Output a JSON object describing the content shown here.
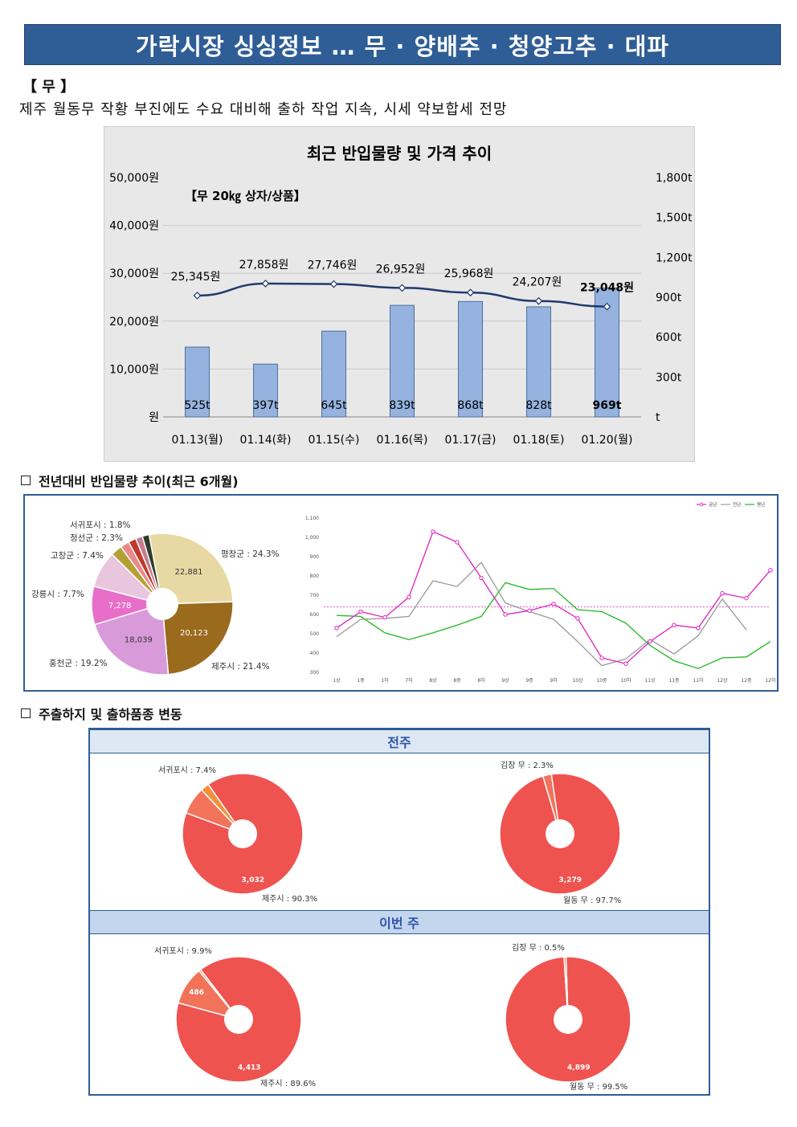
{
  "banner": {
    "title": "가락시장 싱싱정보 …  무 · 양배추 · 청양고추 · 대파"
  },
  "section": {
    "title": "【 무 】",
    "summary": "제주 월동무 작황 부진에도 수요 대비해 출하 작업 지속, 시세 약보합세 전망"
  },
  "chart_data": [
    {
      "type": "bar",
      "title": "최근 반입물량 및 가격 추이",
      "annotation": "【무 20㎏ 상자/상품】",
      "categories": [
        "01.13(월)",
        "01.14(화)",
        "01.15(수)",
        "01.16(목)",
        "01.17(금)",
        "01.18(토)",
        "01.20(월)"
      ],
      "series": [
        {
          "type": "bar",
          "values": [
            525,
            397,
            645,
            839,
            868,
            828,
            969
          ],
          "labels": [
            "525t",
            "397t",
            "645t",
            "839t",
            "868t",
            "828t",
            "969t"
          ],
          "axis": "right",
          "color": "#95b3de"
        },
        {
          "type": "line",
          "values": [
            25345,
            27858,
            27746,
            26952,
            25968,
            24207,
            23048
          ],
          "labels": [
            "25,345원",
            "27,858원",
            "27,746원",
            "26,952원",
            "25,968원",
            "24,207원",
            "23,048원"
          ],
          "axis": "left",
          "color": "#1f3a6e"
        }
      ],
      "y_left": {
        "ticks": [
          "50,000원",
          "40,000원",
          "30,000원",
          "20,000원",
          "10,000원",
          "원"
        ],
        "range": [
          0,
          50000
        ]
      },
      "y_right": {
        "ticks": [
          "1,800t",
          "1,500t",
          "1,200t",
          "900t",
          "600t",
          "300t",
          "t"
        ],
        "range": [
          0,
          1800
        ]
      }
    },
    {
      "type": "pie",
      "slices": [
        {
          "label": "평창군 : 24.3%",
          "value": 22881,
          "value_label": "22,881",
          "color": "#e8d9a4"
        },
        {
          "label": "제주시 : 21.4%",
          "value": 20123,
          "value_label": "20,123",
          "color": "#9a6a1d"
        },
        {
          "label": "홍천군 : 19.2%",
          "value": 18039,
          "value_label": "18,039",
          "color": "#d89ad9"
        },
        {
          "label": "강릉시 : 7.7%",
          "value": 7278,
          "value_label": "7,278",
          "color": "#e86fc9"
        },
        {
          "label": "고창군 : 7.4%",
          "value": 6970,
          "value_label": "",
          "color": "#e9c5de"
        },
        {
          "label": "정선군 : 2.3%",
          "value": 2170,
          "value_label": "",
          "color": "#b5a036"
        },
        {
          "label": "서귀포시 : 1.8%",
          "value": 1700,
          "value_label": "",
          "color": "#e88a8a"
        },
        {
          "label": "",
          "value": 1500,
          "value_label": "",
          "color": "#c0392b"
        },
        {
          "label": "",
          "value": 1300,
          "value_label": "",
          "color": "#c97a8f"
        },
        {
          "label": "",
          "value": 1300,
          "value_label": "",
          "color": "#2e3e2a"
        }
      ]
    },
    {
      "type": "line",
      "legend": [
        "금년",
        "전년",
        "평년"
      ],
      "x": [
        "1상",
        "1중",
        "1하",
        "7하",
        "8상",
        "8중",
        "8하",
        "9상",
        "9중",
        "9하",
        "10상",
        "10중",
        "10하",
        "11상",
        "11중",
        "11하",
        "12상",
        "12중",
        "12하"
      ],
      "ylim": [
        300,
        1100
      ],
      "yticks": [
        "300",
        "400",
        "500",
        "600",
        "700",
        "800",
        "900",
        "1,000",
        "1,100"
      ],
      "reference_line": 640,
      "series": [
        {
          "name": "금년",
          "color": "#e020c0",
          "values": [
            530,
            615,
            585,
            690,
            1030,
            975,
            790,
            600,
            620,
            655,
            580,
            375,
            345,
            460,
            545,
            530,
            710,
            685,
            830
          ]
        },
        {
          "name": "전년",
          "color": "#999999",
          "values": [
            485,
            575,
            580,
            590,
            775,
            745,
            870,
            660,
            615,
            575,
            460,
            335,
            370,
            470,
            395,
            490,
            680,
            520,
            null
          ]
        },
        {
          "name": "평년",
          "color": "#1fb81f",
          "values": [
            595,
            590,
            505,
            470,
            505,
            545,
            590,
            765,
            730,
            735,
            625,
            615,
            555,
            440,
            360,
            320,
            375,
            380,
            460
          ]
        }
      ]
    },
    {
      "type": "pie",
      "slices": [
        {
          "label": "제주시 : 90.3%",
          "value": 3032,
          "value_label": "3,032",
          "color": "#ef5350"
        },
        {
          "label": "서귀포시 : 7.4%",
          "value": 248,
          "value_label": "",
          "color": "#f2735a"
        },
        {
          "label": "",
          "value": 77,
          "value_label": "",
          "color": "#f2913a"
        }
      ]
    },
    {
      "type": "pie",
      "slices": [
        {
          "label": "월동 무 : 97.7%",
          "value": 3279,
          "value_label": "3,279",
          "color": "#ef5350"
        },
        {
          "label": "김장 무 : 2.3%",
          "value": 77,
          "value_label": "",
          "color": "#f2735a"
        }
      ]
    },
    {
      "type": "pie",
      "slices": [
        {
          "label": "제주시 : 89.6%",
          "value": 4413,
          "value_label": "4,413",
          "color": "#ef5350"
        },
        {
          "label": "서귀포시 : 9.9%",
          "value": 486,
          "value_label": "486",
          "color": "#f2735a"
        },
        {
          "label": "",
          "value": 25,
          "value_label": "",
          "color": "#f2913a"
        }
      ]
    },
    {
      "type": "pie",
      "slices": [
        {
          "label": "월동 무 : 99.5%",
          "value": 4899,
          "value_label": "4,899",
          "color": "#ef5350"
        },
        {
          "label": "김장 무 : 0.5%",
          "value": 25,
          "value_label": "",
          "color": "#f2735a"
        }
      ]
    }
  ],
  "sub1": {
    "title": "전년대비 반입물량 추이(최근 6개월)"
  },
  "sub2": {
    "title": "주출하지 및 출하품종 변동"
  },
  "week_prev": {
    "label": "전주"
  },
  "week_this": {
    "label": "이번 주"
  }
}
